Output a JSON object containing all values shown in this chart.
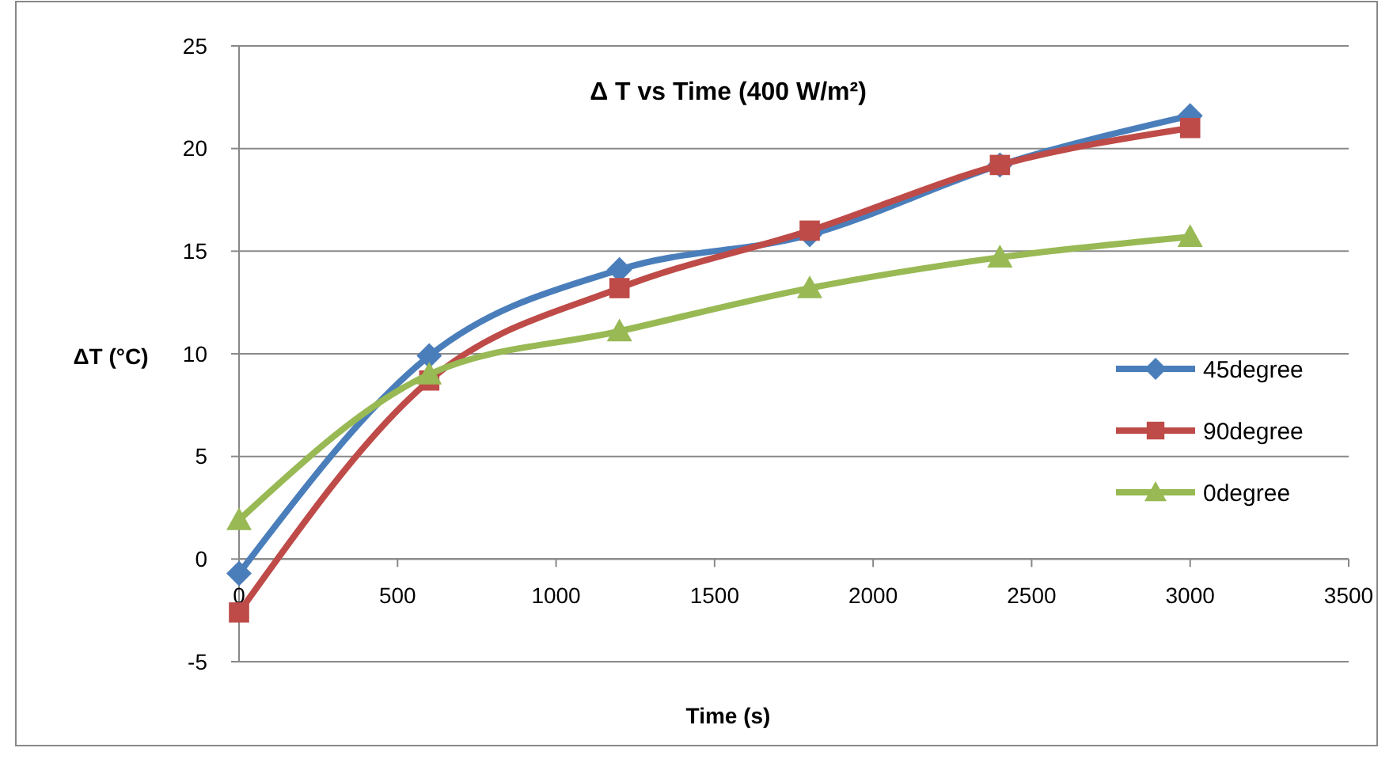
{
  "chart_data": {
    "type": "line",
    "title": "Δ T vs Time (400 W/m²)",
    "xlabel": "Time (s)",
    "ylabel": "ΔT (°C)",
    "x": [
      0,
      600,
      1200,
      1800,
      2400,
      3000
    ],
    "series": [
      {
        "name": "45degree",
        "color": "#4a7ebb",
        "marker": "diamond",
        "values": [
          -0.7,
          9.9,
          14.1,
          15.8,
          19.2,
          21.6
        ]
      },
      {
        "name": "90degree",
        "color": "#be4b48",
        "marker": "square",
        "values": [
          -2.6,
          8.7,
          13.2,
          16.0,
          19.2,
          21.0
        ]
      },
      {
        "name": "0degree",
        "color": "#98b954",
        "marker": "triangle",
        "values": [
          1.9,
          9.0,
          11.1,
          13.2,
          14.7,
          15.7
        ]
      }
    ],
    "xlim": [
      0,
      3500
    ],
    "xticks": [
      0,
      500,
      1000,
      1500,
      2000,
      2500,
      3000,
      3500
    ],
    "ylim": [
      -5,
      25
    ],
    "yticks": [
      -5,
      0,
      5,
      10,
      15,
      20,
      25
    ],
    "grid": "y",
    "legend": "right",
    "line_style": "solid"
  }
}
